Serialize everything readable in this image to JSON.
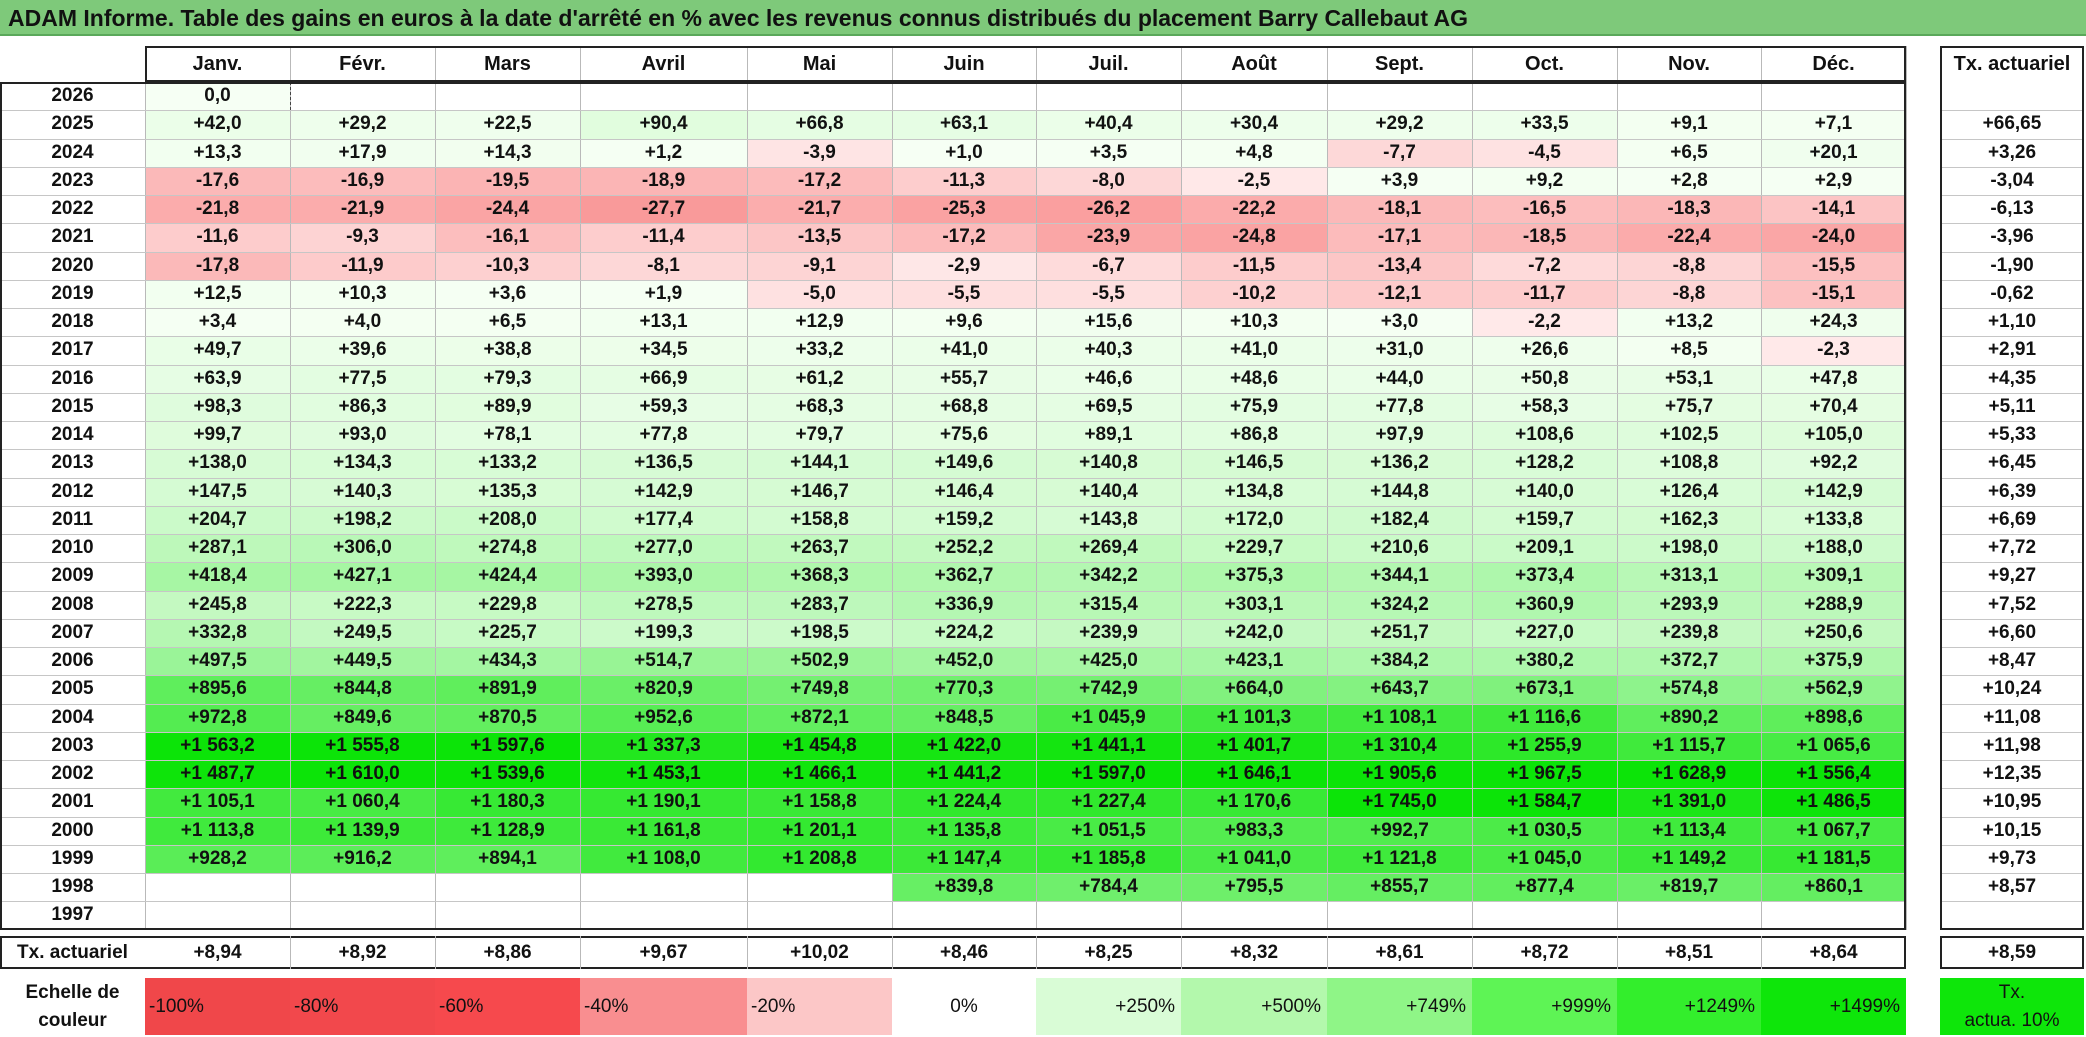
{
  "title": "ADAM Informe. Table des gains en euros à la date d'arrêté en % avec les revenus connus distribués du placement Barry Callebaut AG",
  "months": [
    "Janv.",
    "Févr.",
    "Mars",
    "Avril",
    "Mai",
    "Juin",
    "Juil.",
    "Août",
    "Sept.",
    "Oct.",
    "Nov.",
    "Déc."
  ],
  "rate_header": "Tx. actuariel",
  "rows": [
    {
      "year": "2026",
      "values": [
        "0,0",
        "",
        "",
        "",
        "",
        "",
        "",
        "",
        "",
        "",
        "",
        ""
      ],
      "rate": ""
    },
    {
      "year": "2025",
      "values": [
        "+42,0",
        "+29,2",
        "+22,5",
        "+90,4",
        "+66,8",
        "+63,1",
        "+40,4",
        "+30,4",
        "+29,2",
        "+33,5",
        "+9,1",
        "+7,1"
      ],
      "rate": "+66,65"
    },
    {
      "year": "2024",
      "values": [
        "+13,3",
        "+17,9",
        "+14,3",
        "+1,2",
        "-3,9",
        "+1,0",
        "+3,5",
        "+4,8",
        "-7,7",
        "-4,5",
        "+6,5",
        "+20,1"
      ],
      "rate": "+3,26"
    },
    {
      "year": "2023",
      "values": [
        "-17,6",
        "-16,9",
        "-19,5",
        "-18,9",
        "-17,2",
        "-11,3",
        "-8,0",
        "-2,5",
        "+3,9",
        "+9,2",
        "+2,8",
        "+2,9"
      ],
      "rate": "-3,04"
    },
    {
      "year": "2022",
      "values": [
        "-21,8",
        "-21,9",
        "-24,4",
        "-27,7",
        "-21,7",
        "-25,3",
        "-26,2",
        "-22,2",
        "-18,1",
        "-16,5",
        "-18,3",
        "-14,1"
      ],
      "rate": "-6,13"
    },
    {
      "year": "2021",
      "values": [
        "-11,6",
        "-9,3",
        "-16,1",
        "-11,4",
        "-13,5",
        "-17,2",
        "-23,9",
        "-24,8",
        "-17,1",
        "-18,5",
        "-22,4",
        "-24,0"
      ],
      "rate": "-3,96"
    },
    {
      "year": "2020",
      "values": [
        "-17,8",
        "-11,9",
        "-10,3",
        "-8,1",
        "-9,1",
        "-2,9",
        "-6,7",
        "-11,5",
        "-13,4",
        "-7,2",
        "-8,8",
        "-15,5"
      ],
      "rate": "-1,90"
    },
    {
      "year": "2019",
      "values": [
        "+12,5",
        "+10,3",
        "+3,6",
        "+1,9",
        "-5,0",
        "-5,5",
        "-5,5",
        "-10,2",
        "-12,1",
        "-11,7",
        "-8,8",
        "-15,1"
      ],
      "rate": "-0,62"
    },
    {
      "year": "2018",
      "values": [
        "+3,4",
        "+4,0",
        "+6,5",
        "+13,1",
        "+12,9",
        "+9,6",
        "+15,6",
        "+10,3",
        "+3,0",
        "-2,2",
        "+13,2",
        "+24,3"
      ],
      "rate": "+1,10"
    },
    {
      "year": "2017",
      "values": [
        "+49,7",
        "+39,6",
        "+38,8",
        "+34,5",
        "+33,2",
        "+41,0",
        "+40,3",
        "+41,0",
        "+31,0",
        "+26,6",
        "+8,5",
        "-2,3"
      ],
      "rate": "+2,91"
    },
    {
      "year": "2016",
      "values": [
        "+63,9",
        "+77,5",
        "+79,3",
        "+66,9",
        "+61,2",
        "+55,7",
        "+46,6",
        "+48,6",
        "+44,0",
        "+50,8",
        "+53,1",
        "+47,8"
      ],
      "rate": "+4,35"
    },
    {
      "year": "2015",
      "values": [
        "+98,3",
        "+86,3",
        "+89,9",
        "+59,3",
        "+68,3",
        "+68,8",
        "+69,5",
        "+75,9",
        "+77,8",
        "+58,3",
        "+75,7",
        "+70,4"
      ],
      "rate": "+5,11"
    },
    {
      "year": "2014",
      "values": [
        "+99,7",
        "+93,0",
        "+78,1",
        "+77,8",
        "+79,7",
        "+75,6",
        "+89,1",
        "+86,8",
        "+97,9",
        "+108,6",
        "+102,5",
        "+105,0"
      ],
      "rate": "+5,33"
    },
    {
      "year": "2013",
      "values": [
        "+138,0",
        "+134,3",
        "+133,2",
        "+136,5",
        "+144,1",
        "+149,6",
        "+140,8",
        "+146,5",
        "+136,2",
        "+128,2",
        "+108,8",
        "+92,2"
      ],
      "rate": "+6,45"
    },
    {
      "year": "2012",
      "values": [
        "+147,5",
        "+140,3",
        "+135,3",
        "+142,9",
        "+146,7",
        "+146,4",
        "+140,4",
        "+134,8",
        "+144,8",
        "+140,0",
        "+126,4",
        "+142,9"
      ],
      "rate": "+6,39"
    },
    {
      "year": "2011",
      "values": [
        "+204,7",
        "+198,2",
        "+208,0",
        "+177,4",
        "+158,8",
        "+159,2",
        "+143,8",
        "+172,0",
        "+182,4",
        "+159,7",
        "+162,3",
        "+133,8"
      ],
      "rate": "+6,69"
    },
    {
      "year": "2010",
      "values": [
        "+287,1",
        "+306,0",
        "+274,8",
        "+277,0",
        "+263,7",
        "+252,2",
        "+269,4",
        "+229,7",
        "+210,6",
        "+209,1",
        "+198,0",
        "+188,0"
      ],
      "rate": "+7,72"
    },
    {
      "year": "2009",
      "values": [
        "+418,4",
        "+427,1",
        "+424,4",
        "+393,0",
        "+368,3",
        "+362,7",
        "+342,2",
        "+375,3",
        "+344,1",
        "+373,4",
        "+313,1",
        "+309,1"
      ],
      "rate": "+9,27"
    },
    {
      "year": "2008",
      "values": [
        "+245,8",
        "+222,3",
        "+229,8",
        "+278,5",
        "+283,7",
        "+336,9",
        "+315,4",
        "+303,1",
        "+324,2",
        "+360,9",
        "+293,9",
        "+288,9"
      ],
      "rate": "+7,52"
    },
    {
      "year": "2007",
      "values": [
        "+332,8",
        "+249,5",
        "+225,7",
        "+199,3",
        "+198,5",
        "+224,2",
        "+239,9",
        "+242,0",
        "+251,7",
        "+227,0",
        "+239,8",
        "+250,6"
      ],
      "rate": "+6,60"
    },
    {
      "year": "2006",
      "values": [
        "+497,5",
        "+449,5",
        "+434,3",
        "+514,7",
        "+502,9",
        "+452,0",
        "+425,0",
        "+423,1",
        "+384,2",
        "+380,2",
        "+372,7",
        "+375,9"
      ],
      "rate": "+8,47"
    },
    {
      "year": "2005",
      "values": [
        "+895,6",
        "+844,8",
        "+891,9",
        "+820,9",
        "+749,8",
        "+770,3",
        "+742,9",
        "+664,0",
        "+643,7",
        "+673,1",
        "+574,8",
        "+562,9"
      ],
      "rate": "+10,24"
    },
    {
      "year": "2004",
      "values": [
        "+972,8",
        "+849,6",
        "+870,5",
        "+952,6",
        "+872,1",
        "+848,5",
        "+1 045,9",
        "+1 101,3",
        "+1 108,1",
        "+1 116,6",
        "+890,2",
        "+898,6"
      ],
      "rate": "+11,08"
    },
    {
      "year": "2003",
      "values": [
        "+1 563,2",
        "+1 555,8",
        "+1 597,6",
        "+1 337,3",
        "+1 454,8",
        "+1 422,0",
        "+1 441,1",
        "+1 401,7",
        "+1 310,4",
        "+1 255,9",
        "+1 115,7",
        "+1 065,6"
      ],
      "rate": "+11,98"
    },
    {
      "year": "2002",
      "values": [
        "+1 487,7",
        "+1 610,0",
        "+1 539,6",
        "+1 453,1",
        "+1 466,1",
        "+1 441,2",
        "+1 597,0",
        "+1 646,1",
        "+1 905,6",
        "+1 967,5",
        "+1 628,9",
        "+1 556,4"
      ],
      "rate": "+12,35"
    },
    {
      "year": "2001",
      "values": [
        "+1 105,1",
        "+1 060,4",
        "+1 180,3",
        "+1 190,1",
        "+1 158,8",
        "+1 224,4",
        "+1 227,4",
        "+1 170,6",
        "+1 745,0",
        "+1 584,7",
        "+1 391,0",
        "+1 486,5"
      ],
      "rate": "+10,95"
    },
    {
      "year": "2000",
      "values": [
        "+1 113,8",
        "+1 139,9",
        "+1 128,9",
        "+1 161,8",
        "+1 201,1",
        "+1 135,8",
        "+1 051,5",
        "+983,3",
        "+992,7",
        "+1 030,5",
        "+1 113,4",
        "+1 067,7"
      ],
      "rate": "+10,15"
    },
    {
      "year": "1999",
      "values": [
        "+928,2",
        "+916,2",
        "+894,1",
        "+1 108,0",
        "+1 208,8",
        "+1 147,4",
        "+1 185,8",
        "+1 041,0",
        "+1 121,8",
        "+1 045,0",
        "+1 149,2",
        "+1 181,5"
      ],
      "rate": "+9,73"
    },
    {
      "year": "1998",
      "values": [
        "",
        "",
        "",
        "",
        "",
        "+839,8",
        "+784,4",
        "+795,5",
        "+855,7",
        "+877,4",
        "+819,7",
        "+860,1"
      ],
      "rate": "+8,57"
    },
    {
      "year": "1997",
      "values": [
        "",
        "",
        "",
        "",
        "",
        "",
        "",
        "",
        "",
        "",
        "",
        ""
      ],
      "rate": ""
    }
  ],
  "footer": {
    "label": "Tx. actuariel",
    "values": [
      "+8,94",
      "+8,92",
      "+8,86",
      "+9,67",
      "+10,02",
      "+8,46",
      "+8,25",
      "+8,32",
      "+8,61",
      "+8,72",
      "+8,51",
      "+8,64"
    ],
    "total": "+8,59"
  },
  "scale": {
    "label_line1": "Echelle de",
    "label_line2": "couleur",
    "items": [
      {
        "text": "-100%",
        "color": "#f0474a"
      },
      {
        "text": "-80%",
        "color": "#f2484c"
      },
      {
        "text": "-60%",
        "color": "#f6494d"
      },
      {
        "text": "-40%",
        "color": "#f98e90"
      },
      {
        "text": "-20%",
        "color": "#fcc7c7"
      },
      {
        "text": "0%",
        "color": "#ffffff"
      },
      {
        "text": "+250%",
        "color": "#d9fcd6"
      },
      {
        "text": "+500%",
        "color": "#b3f8ac"
      },
      {
        "text": "+749%",
        "color": "#8ff587"
      },
      {
        "text": "+999%",
        "color": "#5ef455"
      },
      {
        "text": "+1249%",
        "color": "#33ee2c"
      },
      {
        "text": "+1499%",
        "color": "#0ee60a"
      }
    ],
    "rate_line1": "Tx.",
    "rate_line2": "actua. 10%",
    "rate_color": "#0ee60a"
  }
}
